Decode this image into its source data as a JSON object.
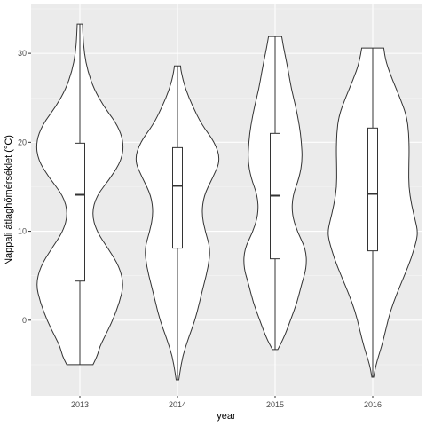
{
  "chart_data": {
    "type": "violin",
    "xlabel": "year",
    "ylabel": "Nappali átlaghőmérséklet (°C)",
    "categories": [
      "2013",
      "2014",
      "2015",
      "2016"
    ],
    "ylim": [
      -8.5,
      35.5
    ],
    "yticks": [
      0,
      10,
      20,
      30
    ],
    "grid": true,
    "colors": {
      "panel": "#ebebeb",
      "grid": "#ffffff",
      "outline": "#333333",
      "fill": "#ffffff"
    },
    "groups": [
      {
        "category": "2013",
        "min": -5.0,
        "q1": 4.4,
        "median": 14.1,
        "q3": 19.9,
        "max": 33.3,
        "density": [
          [
            -5.0,
            0.3
          ],
          [
            -4.0,
            0.4
          ],
          [
            -3.0,
            0.45
          ],
          [
            -2.0,
            0.55
          ],
          [
            0.0,
            0.75
          ],
          [
            2.0,
            0.9
          ],
          [
            4.0,
            1.0
          ],
          [
            6.0,
            0.9
          ],
          [
            8.0,
            0.65
          ],
          [
            10.0,
            0.38
          ],
          [
            12.0,
            0.27
          ],
          [
            14.0,
            0.38
          ],
          [
            16.0,
            0.7
          ],
          [
            18.0,
            0.95
          ],
          [
            20.0,
            1.0
          ],
          [
            22.0,
            0.85
          ],
          [
            24.0,
            0.55
          ],
          [
            26.0,
            0.32
          ],
          [
            28.0,
            0.18
          ],
          [
            30.0,
            0.1
          ],
          [
            32.0,
            0.07
          ],
          [
            33.3,
            0.06
          ]
        ]
      },
      {
        "category": "2014",
        "min": -6.7,
        "q1": 8.1,
        "median": 15.1,
        "q3": 19.4,
        "max": 28.6,
        "density": [
          [
            -6.7,
            0.03
          ],
          [
            -6.0,
            0.05
          ],
          [
            -4.0,
            0.12
          ],
          [
            -2.0,
            0.25
          ],
          [
            0.0,
            0.4
          ],
          [
            2.0,
            0.5
          ],
          [
            4.0,
            0.6
          ],
          [
            6.0,
            0.7
          ],
          [
            8.0,
            0.75
          ],
          [
            10.0,
            0.63
          ],
          [
            12.0,
            0.55
          ],
          [
            14.0,
            0.6
          ],
          [
            16.0,
            0.8
          ],
          [
            18.0,
            0.98
          ],
          [
            20.0,
            0.85
          ],
          [
            22.0,
            0.55
          ],
          [
            24.0,
            0.35
          ],
          [
            26.0,
            0.18
          ],
          [
            28.0,
            0.08
          ],
          [
            28.6,
            0.07
          ]
        ]
      },
      {
        "category": "2015",
        "min": -3.3,
        "q1": 6.9,
        "median": 14.0,
        "q3": 21.0,
        "max": 31.9,
        "density": [
          [
            -3.3,
            0.06
          ],
          [
            -2.0,
            0.2
          ],
          [
            0.0,
            0.35
          ],
          [
            2.0,
            0.5
          ],
          [
            4.0,
            0.6
          ],
          [
            6.0,
            0.72
          ],
          [
            8.0,
            0.7
          ],
          [
            10.0,
            0.5
          ],
          [
            12.0,
            0.38
          ],
          [
            14.0,
            0.4
          ],
          [
            16.0,
            0.55
          ],
          [
            18.0,
            0.62
          ],
          [
            20.0,
            0.6
          ],
          [
            22.0,
            0.55
          ],
          [
            24.0,
            0.47
          ],
          [
            26.0,
            0.37
          ],
          [
            28.0,
            0.3
          ],
          [
            30.0,
            0.22
          ],
          [
            31.0,
            0.18
          ],
          [
            31.9,
            0.15
          ]
        ]
      },
      {
        "category": "2016",
        "min": -6.4,
        "q1": 7.8,
        "median": 14.2,
        "q3": 21.6,
        "max": 30.6,
        "density": [
          [
            -6.4,
            0.02
          ],
          [
            -5.0,
            0.07
          ],
          [
            -3.0,
            0.2
          ],
          [
            -1.0,
            0.3
          ],
          [
            1.0,
            0.4
          ],
          [
            3.0,
            0.55
          ],
          [
            5.0,
            0.72
          ],
          [
            7.0,
            0.88
          ],
          [
            9.0,
            1.0
          ],
          [
            10.0,
            1.02
          ],
          [
            11.0,
            0.98
          ],
          [
            13.0,
            0.88
          ],
          [
            15.0,
            0.82
          ],
          [
            17.0,
            0.82
          ],
          [
            19.0,
            0.83
          ],
          [
            21.0,
            0.82
          ],
          [
            23.0,
            0.77
          ],
          [
            25.0,
            0.62
          ],
          [
            27.0,
            0.45
          ],
          [
            29.0,
            0.3
          ],
          [
            30.6,
            0.25
          ]
        ]
      }
    ]
  }
}
